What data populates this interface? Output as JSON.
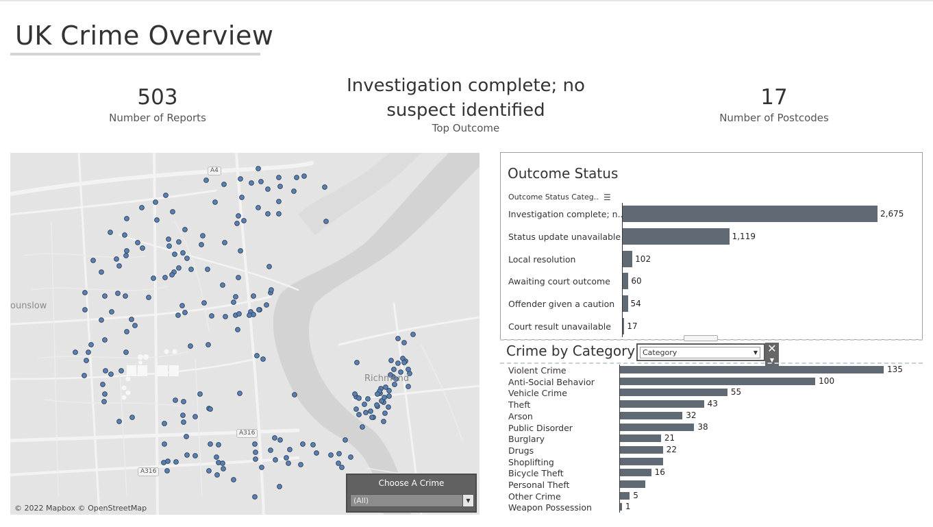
{
  "dashboard": {
    "title": "UK Crime Overview"
  },
  "kpis": {
    "reports": {
      "value": "503",
      "label": "Number of Reports"
    },
    "top_outcome": {
      "line1": "Investigation complete; no",
      "line2": "suspect identified",
      "label": "Top Outcome"
    },
    "postcodes": {
      "value": "17",
      "label": "Number of Postcodes"
    }
  },
  "map": {
    "places": {
      "hounslow": "ounslow",
      "richmond": "Richmond"
    },
    "roads": {
      "a4": "A4",
      "a316_1": "A316",
      "a316_2": "A316"
    },
    "copyright": "© 2022 Mapbox © OpenStreetMap",
    "filter": {
      "label": "Choose A Crime",
      "value": "(All)"
    },
    "colors": {
      "land": "#e4e4e4",
      "water": "#d2d2d2",
      "point": "#4f6f9c"
    }
  },
  "outcome_status": {
    "title": "Outcome Status",
    "header": "Outcome Status Categ..",
    "sort_icon": "sort-icon",
    "rows": [
      {
        "label": "Investigation complete; n..",
        "value": 2675,
        "value_label": "2,675"
      },
      {
        "label": "Status update unavailable",
        "value": 1119,
        "value_label": "1,119"
      },
      {
        "label": "Local resolution",
        "value": 102,
        "value_label": "102"
      },
      {
        "label": "Awaiting court outcome",
        "value": 60,
        "value_label": "60"
      },
      {
        "label": "Offender given a caution",
        "value": 54,
        "value_label": "54"
      },
      {
        "label": "Court result unavailable",
        "value": 17,
        "value_label": "17"
      }
    ]
  },
  "crime_by_category": {
    "title": "Crime by Category",
    "filter": {
      "value": "Category"
    },
    "rows": [
      {
        "label": "Violent Crime",
        "value": 135,
        "value_label": "135"
      },
      {
        "label": "Anti-Social Behavior",
        "value": 100,
        "value_label": "100"
      },
      {
        "label": "Vehicle Crime",
        "value": 55,
        "value_label": "55"
      },
      {
        "label": "Theft",
        "value": 43,
        "value_label": "43"
      },
      {
        "label": "Arson",
        "value": 32,
        "value_label": "32"
      },
      {
        "label": "Public Disorder",
        "value": 38,
        "value_label": "38"
      },
      {
        "label": "Burglary",
        "value": 21,
        "value_label": "21"
      },
      {
        "label": "Drugs",
        "value": 22,
        "value_label": "22"
      },
      {
        "label": "Shoplifting",
        "value": 22,
        "value_label": ""
      },
      {
        "label": "Bicycle Theft",
        "value": 16,
        "value_label": "16"
      },
      {
        "label": "Personal Theft",
        "value": 13,
        "value_label": ""
      },
      {
        "label": "Other Crime",
        "value": 5,
        "value_label": "5"
      },
      {
        "label": "Weapon Possession",
        "value": 1,
        "value_label": "1"
      }
    ]
  },
  "colors": {
    "bar": "#5f6a75"
  }
}
